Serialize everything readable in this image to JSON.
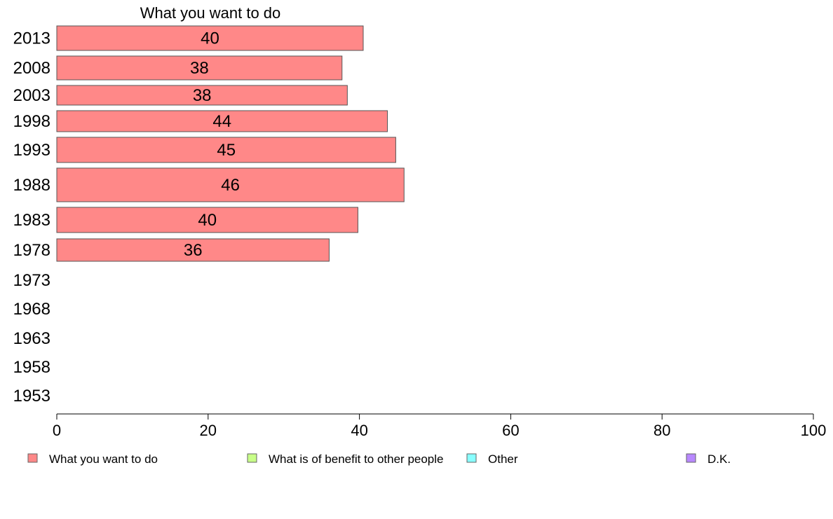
{
  "chart_data": {
    "type": "bar",
    "orientation": "horizontal",
    "title": "What you want to do",
    "categories": [
      "2013",
      "2008",
      "2003",
      "1998",
      "1993",
      "1988",
      "1983",
      "1978",
      "1973",
      "1968",
      "1963",
      "1958",
      "1953"
    ],
    "series": [
      {
        "name": "What you want to do",
        "color": "#ff8888",
        "values": [
          40.5,
          37.7,
          38.4,
          43.7,
          44.8,
          45.9,
          39.8,
          36.0,
          null,
          null,
          null,
          null,
          null
        ],
        "labels": [
          "40",
          "38",
          "38",
          "44",
          "45",
          "46",
          "40",
          "36",
          "",
          "",
          "",
          "",
          ""
        ]
      }
    ],
    "xlim": [
      0,
      100
    ],
    "xticks": [
      0,
      20,
      40,
      60,
      80,
      100
    ],
    "grid": false,
    "legend_position": "bottom",
    "legend": [
      {
        "label": "What you want to do",
        "color": "#ff8888"
      },
      {
        "label": "What is of benefit to other people",
        "color": "#c8ff88"
      },
      {
        "label": "Other",
        "color": "#88ffff"
      },
      {
        "label": "D.K.",
        "color": "#b888ff"
      }
    ]
  }
}
